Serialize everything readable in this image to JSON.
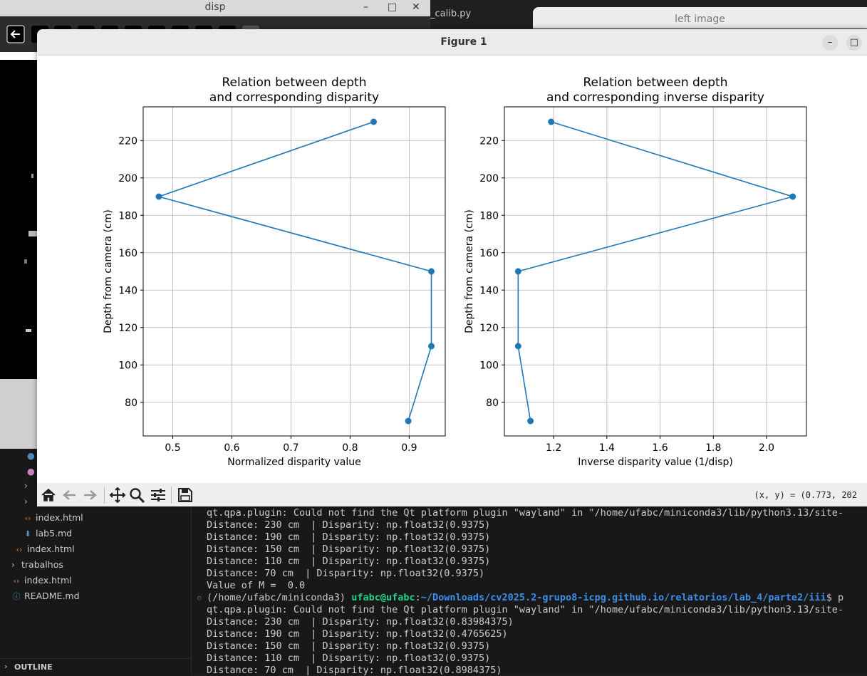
{
  "disp_window": {
    "title": "disp"
  },
  "editor": {
    "tab_label": "_calib.py"
  },
  "left_image_window": {
    "title": "left image"
  },
  "sidebar": {
    "items": [
      {
        "label": "index.html",
        "icon": "html-icon"
      },
      {
        "label": "lab5.md",
        "icon": "markdown-icon"
      },
      {
        "label": "index.html",
        "icon": "html-icon"
      },
      {
        "label": "trabalhos",
        "icon": "folder-chevron"
      },
      {
        "label": "index.html",
        "icon": "html-icon"
      },
      {
        "label": "README.md",
        "icon": "info-icon"
      }
    ],
    "outline_label": "OUTLINE"
  },
  "terminal": {
    "lines": [
      "qt.qpa.plugin: Could not find the Qt platform plugin \"wayland\" in \"/home/ufabc/miniconda3/lib/python3.13/site-",
      "Distance: 230 cm  | Disparity: np.float32(0.9375)",
      "Distance: 190 cm  | Disparity: np.float32(0.9375)",
      "Distance: 150 cm  | Disparity: np.float32(0.9375)",
      "Distance: 110 cm  | Disparity: np.float32(0.9375)",
      "Distance: 70 cm  | Disparity: np.float32(0.9375)",
      "Value of M =  0.0"
    ],
    "prompt": {
      "env": "(/home/ufabc/miniconda3) ",
      "user": "ufabc@ufabc",
      "sep": ":",
      "path": "~/Downloads/cv2025.2-grupo8-icpg.github.io/relatorios/lab_4/parte2/iii",
      "suffix": "$ p"
    },
    "lines2": [
      "qt.qpa.plugin: Could not find the Qt platform plugin \"wayland\" in \"/home/ufabc/miniconda3/lib/python3.13/site-",
      "Distance: 230 cm  | Disparity: np.float32(0.83984375)",
      "Distance: 190 cm  | Disparity: np.float32(0.4765625)",
      "Distance: 150 cm  | Disparity: np.float32(0.9375)",
      "Distance: 110 cm  | Disparity: np.float32(0.9375)",
      "Distance: 70 cm  | Disparity: np.float32(0.8984375)"
    ]
  },
  "figure": {
    "title": "Figure 1",
    "coords": "(x, y) = (0.773, 202",
    "toolbar": [
      "home-icon",
      "back-icon",
      "forward-icon",
      "pan-icon",
      "zoom-icon",
      "configure-icon",
      "save-icon"
    ]
  },
  "chart_data": [
    {
      "type": "line",
      "title": "Relation between depth\nand corresponding disparity",
      "xlabel": "Normalized disparity value",
      "ylabel": "Depth from camera (cm)",
      "x": [
        0.83984375,
        0.4765625,
        0.9375,
        0.9375,
        0.8984375
      ],
      "y": [
        230,
        190,
        150,
        110,
        70
      ],
      "xlim": [
        0.45,
        0.961
      ],
      "ylim": [
        62,
        238
      ],
      "xticks": [
        0.5,
        0.6,
        0.7,
        0.8,
        0.9
      ],
      "xtick_labels": [
        "0.5",
        "0.6",
        "0.7",
        "0.8",
        "0.9"
      ],
      "yticks": [
        80,
        100,
        120,
        140,
        160,
        180,
        200,
        220
      ],
      "ytick_labels": [
        "80",
        "100",
        "120",
        "140",
        "160",
        "180",
        "200",
        "220"
      ],
      "grid": true,
      "color": "#1f77b4"
    },
    {
      "type": "line",
      "title": "Relation between depth\nand corresponding inverse disparity",
      "xlabel": "Inverse disparity value (1/disp)",
      "ylabel": "Depth from camera (cm)",
      "x": [
        1.1907,
        2.0984,
        1.0667,
        1.0667,
        1.113
      ],
      "y": [
        230,
        190,
        150,
        110,
        70
      ],
      "xlim": [
        1.015,
        2.15
      ],
      "ylim": [
        62,
        238
      ],
      "xticks": [
        1.2,
        1.4,
        1.6,
        1.8,
        2.0
      ],
      "xtick_labels": [
        "1.2",
        "1.4",
        "1.6",
        "1.8",
        "2.0"
      ],
      "yticks": [
        80,
        100,
        120,
        140,
        160,
        180,
        200,
        220
      ],
      "ytick_labels": [
        "80",
        "100",
        "120",
        "140",
        "160",
        "180",
        "200",
        "220"
      ],
      "grid": true,
      "color": "#1f77b4"
    }
  ]
}
